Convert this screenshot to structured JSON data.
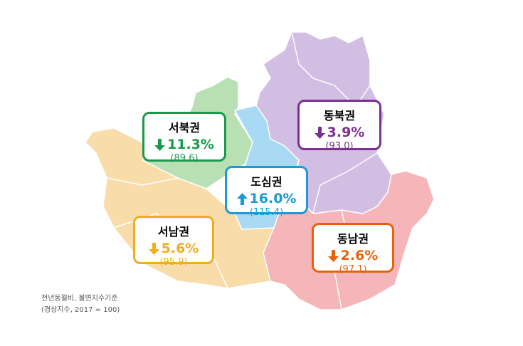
{
  "regions": [
    {
      "name": "서북권",
      "change": "11.3%",
      "direction": "down",
      "index": "(89.6)",
      "color": "#1a9a4a",
      "fill": "#b9dfb4"
    },
    {
      "name": "동북권",
      "change": "3.9%",
      "direction": "down",
      "index": "(93.0)",
      "color": "#7b2f8e",
      "fill": "#d2bde3"
    },
    {
      "name": "도심권",
      "change": "16.0%",
      "direction": "up",
      "index": "(115.4)",
      "color": "#1a9ad6",
      "fill": "#a9daf3"
    },
    {
      "name": "서남권",
      "change": "5.6%",
      "direction": "down",
      "index": "(95.9)",
      "color": "#f2ad1f",
      "fill": "#f8dcaa"
    },
    {
      "name": "동남권",
      "change": "2.6%",
      "direction": "down",
      "index": "(97.1)",
      "color": "#e8620e",
      "fill": "#f4b6b8"
    }
  ],
  "note": {
    "line1": "전년동월비, 불변지수기준",
    "line2": "(경상지수, 2017 = 100)"
  }
}
